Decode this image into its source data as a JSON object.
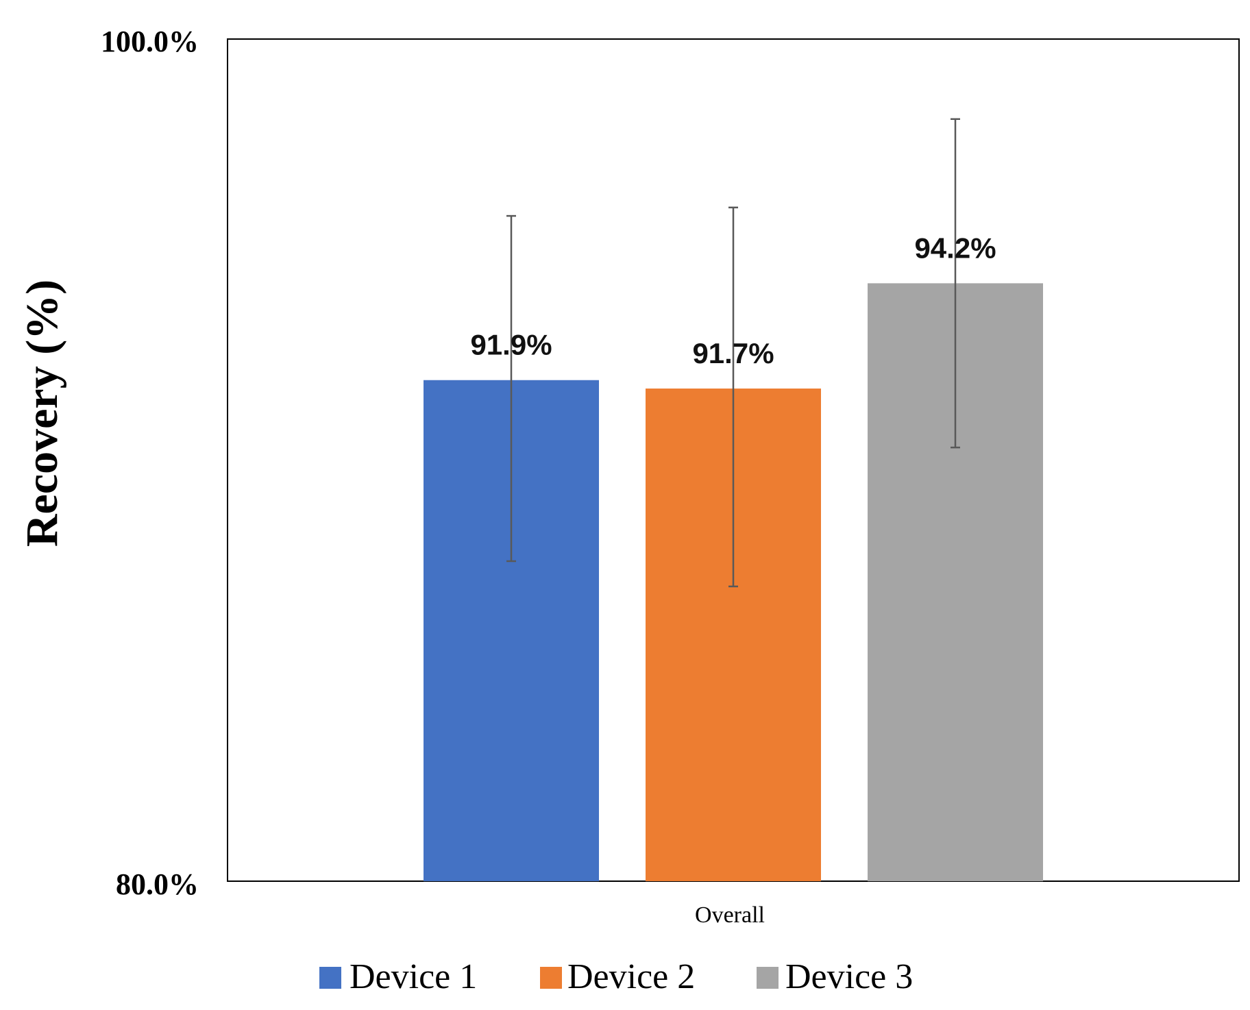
{
  "chart_data": {
    "type": "bar",
    "title": "",
    "xlabel": "",
    "ylabel": "Recovery (%)",
    "ylim": [
      80.0,
      100.0
    ],
    "yticks": [
      "80.0%",
      "100.0%"
    ],
    "grid": false,
    "legend_position": "bottom",
    "categories": [
      "Overall"
    ],
    "series": [
      {
        "name": "Device 1",
        "color": "#4472C4",
        "values": [
          91.9
        ],
        "label": "91.9%",
        "error_low": [
          4.3
        ],
        "error_high": [
          3.9
        ]
      },
      {
        "name": "Device 2",
        "color": "#ED7D31",
        "values": [
          91.7
        ],
        "label": "91.7%",
        "error_low": [
          4.7
        ],
        "error_high": [
          4.3
        ]
      },
      {
        "name": "Device 3",
        "color": "#A5A5A5",
        "values": [
          94.2
        ],
        "label": "94.2%",
        "error_low": [
          3.9
        ],
        "error_high": [
          3.9
        ]
      }
    ],
    "error_bar_color": "#595959"
  }
}
